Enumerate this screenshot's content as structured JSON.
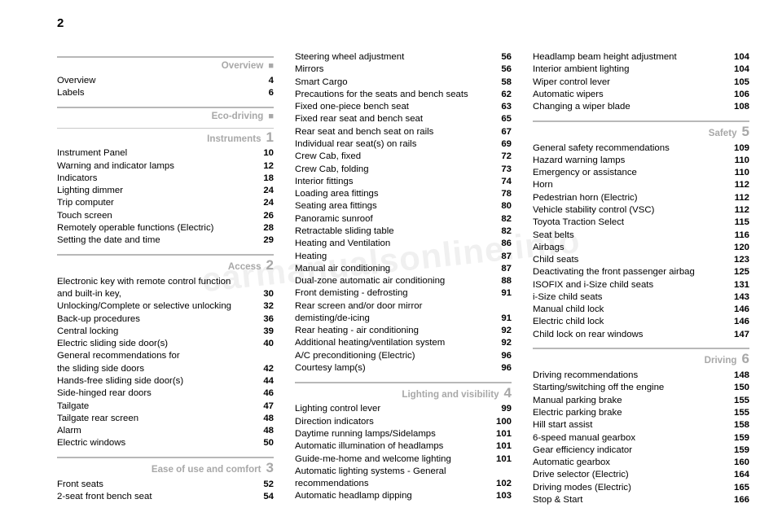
{
  "page_number": "2",
  "watermark": "carmanualsonline.info",
  "colors": {
    "section": "#a8a8a8",
    "rule": "#b8b8b8",
    "text": "#000",
    "bold_page": "#000"
  },
  "typography": {
    "body_size": 11.4,
    "section_title_size": 11.6,
    "section_num_size": 17,
    "page_num_size": 15
  },
  "col1": [
    {
      "type": "section",
      "title": "Overview",
      "num": "■"
    },
    {
      "type": "entries",
      "rows": [
        [
          "Overview",
          "4"
        ],
        [
          "Labels",
          "6"
        ]
      ]
    },
    {
      "type": "section",
      "title": "Eco-driving",
      "num": "■"
    },
    {
      "type": "section",
      "title": "Instruments",
      "num": "1",
      "rule": "thin"
    },
    {
      "type": "entries",
      "rows": [
        [
          "Instrument Panel",
          "10"
        ],
        [
          "Warning and indicator lamps",
          "12"
        ],
        [
          "Indicators",
          "18"
        ],
        [
          "Lighting dimmer",
          "24"
        ],
        [
          "Trip computer",
          "24"
        ],
        [
          "Touch screen",
          "26"
        ],
        [
          "Remotely operable functions (Electric)",
          "28"
        ],
        [
          "Setting the date and time",
          "29"
        ]
      ]
    },
    {
      "type": "section",
      "title": "Access",
      "num": "2"
    },
    {
      "type": "entries",
      "rows": [
        [
          "Electronic key with remote control function",
          ""
        ],
        [
          "and built-in key,",
          "30"
        ],
        [
          "Unlocking/Complete or selective unlocking",
          "32"
        ],
        [
          "Back-up procedures",
          "36"
        ],
        [
          "Central locking",
          "39"
        ],
        [
          "Electric sliding side door(s)",
          "40"
        ],
        [
          "General recommendations for",
          ""
        ],
        [
          "the sliding side doors",
          "42"
        ],
        [
          "Hands-free sliding side door(s)",
          "44"
        ],
        [
          "Side-hinged rear doors",
          "46"
        ],
        [
          "Tailgate",
          "47"
        ],
        [
          "Tailgate rear screen",
          "48"
        ],
        [
          "Alarm",
          "48"
        ],
        [
          "Electric windows",
          "50"
        ]
      ]
    },
    {
      "type": "section",
      "title": "Ease of use and comfort",
      "num": "3"
    },
    {
      "type": "entries",
      "rows": [
        [
          "Front seats",
          "52"
        ],
        [
          "2-seat front bench seat",
          "54"
        ]
      ]
    }
  ],
  "col2": [
    {
      "type": "entries",
      "rows": [
        [
          "Steering wheel adjustment",
          "56"
        ],
        [
          "Mirrors",
          "56"
        ],
        [
          "Smart Cargo",
          "58"
        ],
        [
          "Precautions for the seats and bench seats",
          "62"
        ],
        [
          "Fixed one-piece bench seat",
          "63"
        ],
        [
          "Fixed rear seat and bench seat",
          "65"
        ],
        [
          "Rear seat and bench seat on rails",
          "67"
        ],
        [
          "Individual rear seat(s) on rails",
          "69"
        ],
        [
          "Crew Cab, fixed",
          "72"
        ],
        [
          "Crew Cab, folding",
          "73"
        ],
        [
          "Interior fittings",
          "74"
        ],
        [
          "Loading area fittings",
          "78"
        ],
        [
          "Seating area fittings",
          "80"
        ],
        [
          "Panoramic sunroof",
          "82"
        ],
        [
          "Retractable sliding table",
          "82"
        ],
        [
          "Heating and Ventilation",
          "86"
        ],
        [
          "Heating",
          "87"
        ],
        [
          "Manual air conditioning",
          "87"
        ],
        [
          "Dual-zone automatic air conditioning",
          "88"
        ],
        [
          "Front demisting - defrosting",
          "91"
        ],
        [
          "Rear screen and/or door mirror",
          ""
        ],
        [
          "demisting/de-icing",
          "91"
        ],
        [
          "Rear heating - air conditioning",
          "92"
        ],
        [
          "Additional heating/ventilation system",
          "92"
        ],
        [
          "A/C preconditioning (Electric)",
          "96"
        ],
        [
          "Courtesy lamp(s)",
          "96"
        ]
      ]
    },
    {
      "type": "section",
      "title": "Lighting and visibility",
      "num": "4"
    },
    {
      "type": "entries",
      "rows": [
        [
          "Lighting control lever",
          "99"
        ],
        [
          "Direction indicators",
          "100"
        ],
        [
          "Daytime running lamps/Sidelamps",
          "101"
        ],
        [
          "Automatic illumination of headlamps",
          "101"
        ],
        [
          "Guide-me-home and welcome lighting",
          "101"
        ],
        [
          "Automatic lighting systems - General",
          ""
        ],
        [
          "recommendations",
          "102"
        ],
        [
          "Automatic headlamp dipping",
          "103"
        ]
      ]
    }
  ],
  "col3": [
    {
      "type": "entries",
      "rows": [
        [
          "Headlamp beam height adjustment",
          "104"
        ],
        [
          "Interior ambient lighting",
          "104"
        ],
        [
          "Wiper control lever",
          "105"
        ],
        [
          "Automatic wipers",
          "106"
        ],
        [
          "Changing a wiper blade",
          "108"
        ]
      ]
    },
    {
      "type": "section",
      "title": "Safety",
      "num": "5"
    },
    {
      "type": "entries",
      "rows": [
        [
          "General safety recommendations",
          "109"
        ],
        [
          "Hazard warning lamps",
          "110"
        ],
        [
          "Emergency or assistance",
          "110"
        ],
        [
          "Horn",
          "112"
        ],
        [
          "Pedestrian horn (Electric)",
          "112"
        ],
        [
          "Vehicle stability control (VSC)",
          "112"
        ],
        [
          "Toyota Traction Select",
          "115"
        ],
        [
          "Seat belts",
          "116"
        ],
        [
          "Airbags",
          "120"
        ],
        [
          "Child seats",
          "123"
        ],
        [
          "Deactivating the front passenger airbag",
          "125"
        ],
        [
          "ISOFIX and i-Size child seats",
          "131"
        ],
        [
          "i-Size child seats",
          "143"
        ],
        [
          "Manual child lock",
          "146"
        ],
        [
          "Electric child lock",
          "146"
        ],
        [
          "Child lock on rear windows",
          "147"
        ]
      ]
    },
    {
      "type": "section",
      "title": "Driving",
      "num": "6"
    },
    {
      "type": "entries",
      "rows": [
        [
          "Driving recommendations",
          "148"
        ],
        [
          "Starting/switching off the engine",
          "150"
        ],
        [
          "Manual parking brake",
          "155"
        ],
        [
          "Electric parking brake",
          "155"
        ],
        [
          "Hill start assist",
          "158"
        ],
        [
          "6-speed manual gearbox",
          "159"
        ],
        [
          "Gear efficiency indicator",
          "159"
        ],
        [
          "Automatic gearbox",
          "160"
        ],
        [
          "Drive selector (Electric)",
          "164"
        ],
        [
          "Driving modes (Electric)",
          "165"
        ],
        [
          "Stop & Start",
          "166"
        ]
      ]
    }
  ]
}
